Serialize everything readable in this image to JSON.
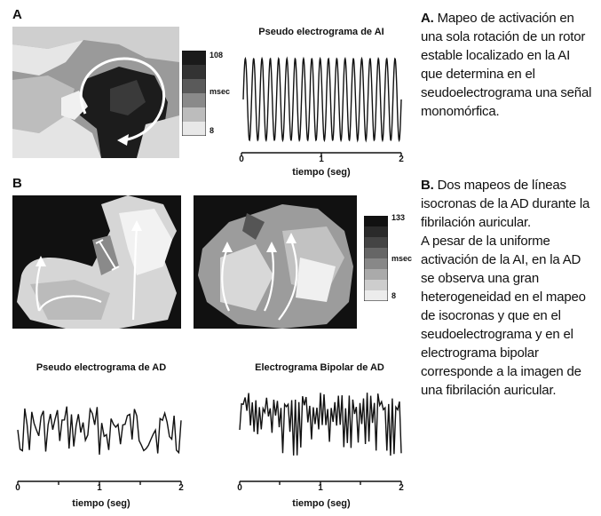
{
  "panel_a": {
    "letter": "A",
    "trace_title": "Pseudo electrograma de AI",
    "axis_label": "tiempo (seg)",
    "ticks": [
      "0",
      "1",
      "2"
    ],
    "scale": {
      "max": "108",
      "unit": "msec",
      "min": "8"
    },
    "caption_lead": "A.",
    "caption_body": "Mapeo de activación en una sola rotación de un rotor estable localizado en la AI que determina en el seudoelectrograma una señal monomórfica."
  },
  "panel_b": {
    "letter": "B",
    "scale": {
      "max": "133",
      "unit": "msec",
      "min": "8"
    },
    "trace_left": {
      "title": "Pseudo electrograma de AD",
      "axis_label": "tiempo (seg)",
      "ticks": [
        "0",
        "1",
        "2"
      ]
    },
    "trace_right": {
      "title": "Electrograma Bipolar de AD",
      "axis_label": "tiempo (seg)",
      "ticks": [
        "0",
        "1",
        "2"
      ]
    },
    "caption_lead": "B.",
    "caption_body": "Dos mapeos de líneas isocronas de la AD durante la fibrilación auricular.\nA pesar de la uniforme activación de la AI, en la AD se observa una gran heterogeneidad en el mapeo de isocronas y que en el seudoelectrograma y en el electrograma bipolar corresponde a la imagen de una fibrilación auricular."
  },
  "colors": {
    "ink": "#111111",
    "map_dark": "#1a1a1a",
    "map_light": "#e8e8e8"
  }
}
